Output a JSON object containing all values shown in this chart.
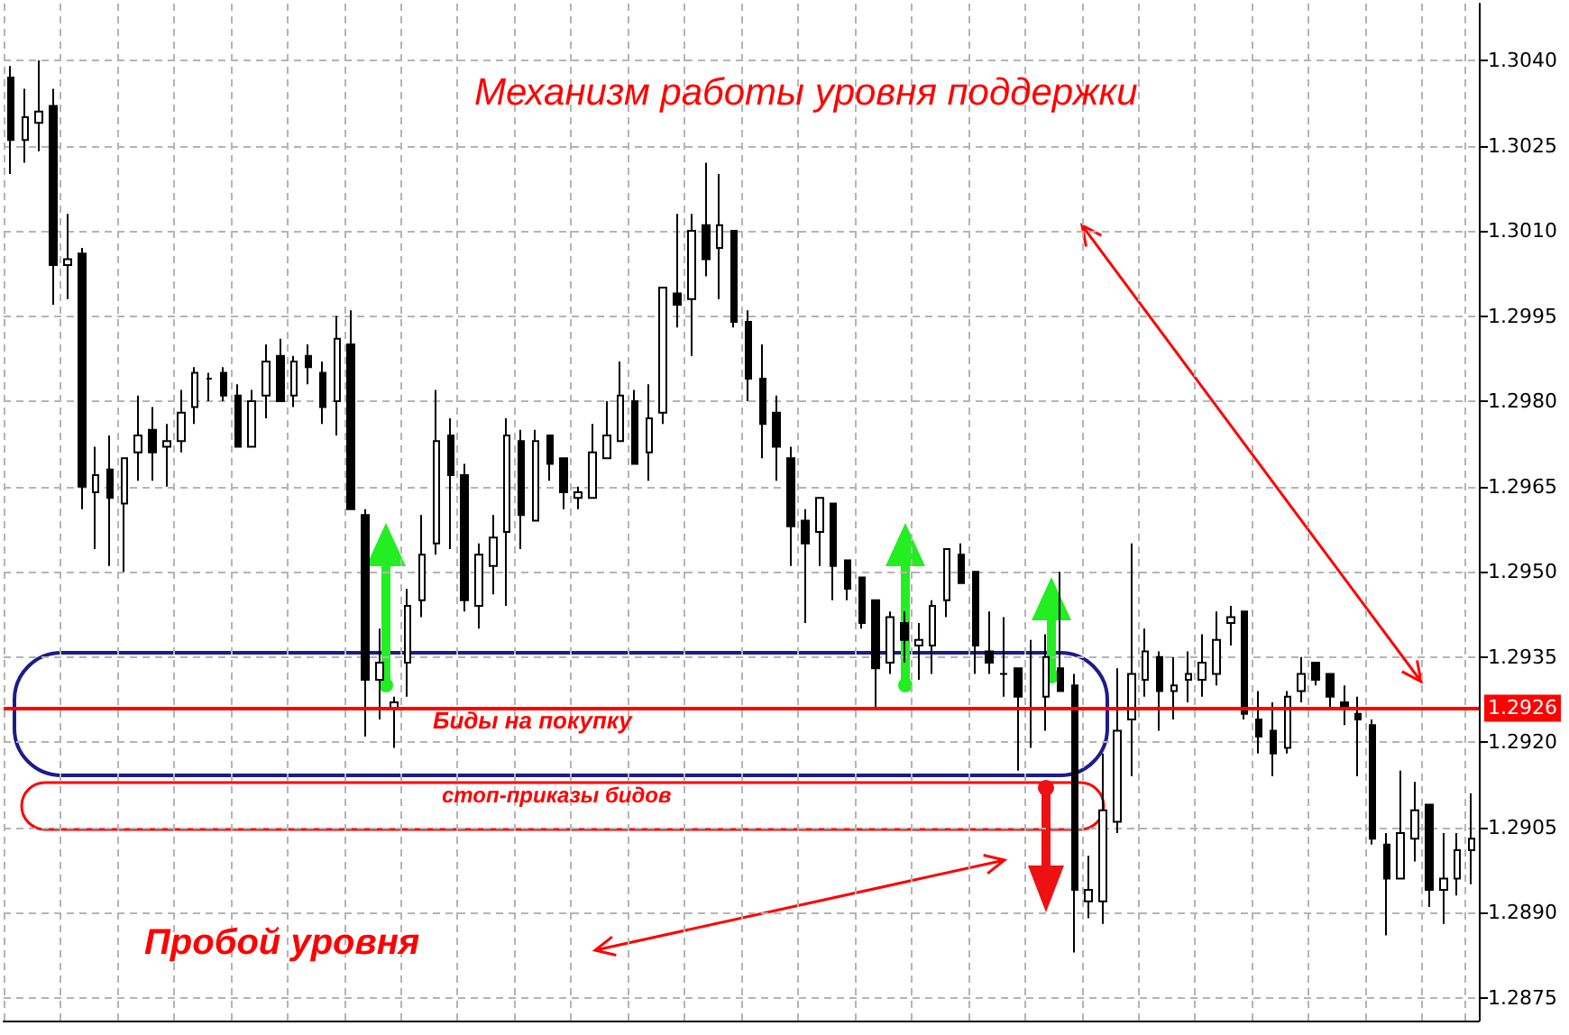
{
  "chart_data": {
    "type": "candlestick",
    "title": "Механизм работы уровня поддержки",
    "annotations": [
      "Биды на покупку",
      "стоп-приказы бидов",
      "Пробой уровня"
    ],
    "categories": [
      null,
      null,
      null,
      null,
      null,
      null,
      null,
      null,
      null,
      null,
      null,
      null,
      null,
      null,
      null,
      null,
      null,
      null,
      null,
      null,
      null,
      null,
      null,
      null,
      null,
      null,
      null,
      null,
      null,
      null,
      null,
      null,
      null,
      null,
      null,
      null,
      null,
      null,
      null,
      null,
      null,
      null,
      null,
      null,
      null,
      null,
      null,
      null,
      null,
      null,
      null,
      null,
      null,
      null,
      null,
      null,
      null,
      null,
      null,
      null,
      null,
      null,
      null,
      null,
      null,
      null,
      null,
      null,
      null,
      null,
      null,
      null,
      null,
      null,
      null,
      null,
      null,
      null,
      null,
      null,
      null,
      null,
      null,
      null,
      null,
      null,
      null,
      null,
      null,
      null,
      null,
      null,
      null,
      null,
      null,
      null,
      null,
      null,
      null,
      null,
      null,
      null,
      null,
      null
    ],
    "ohlc": [
      [
        1.3037,
        1.3039,
        1.302,
        1.3026
      ],
      [
        1.3026,
        1.3035,
        1.3022,
        1.303
      ],
      [
        1.3029,
        1.304,
        1.3024,
        1.3031
      ],
      [
        1.3032,
        1.3035,
        1.2997,
        1.3004
      ],
      [
        1.3004,
        1.3013,
        1.2998,
        1.3005
      ],
      [
        1.3006,
        1.3007,
        1.2961,
        1.2965
      ],
      [
        1.2964,
        1.2972,
        1.2954,
        1.2967
      ],
      [
        1.2968,
        1.2974,
        1.2951,
        1.2963
      ],
      [
        1.2962,
        1.297,
        1.295,
        1.297
      ],
      [
        1.2971,
        1.2981,
        1.2966,
        1.2974
      ],
      [
        1.2975,
        1.2979,
        1.2966,
        1.2971
      ],
      [
        1.2972,
        1.2976,
        1.2965,
        1.2973
      ],
      [
        1.2973,
        1.2982,
        1.2971,
        1.2978
      ],
      [
        1.2979,
        1.2986,
        1.2976,
        1.2985
      ],
      [
        1.2984,
        1.2985,
        1.298,
        1.2984
      ],
      [
        1.2985,
        1.2986,
        1.298,
        1.2981
      ],
      [
        1.2981,
        1.2983,
        1.2972,
        1.2972
      ],
      [
        1.2972,
        1.2982,
        1.2972,
        1.298
      ],
      [
        1.2981,
        1.299,
        1.2977,
        1.2987
      ],
      [
        1.2988,
        1.2991,
        1.298,
        1.298
      ],
      [
        1.2981,
        1.2988,
        1.2979,
        1.2987
      ],
      [
        1.2988,
        1.299,
        1.2983,
        1.2986
      ],
      [
        1.2985,
        1.2987,
        1.2976,
        1.2979
      ],
      [
        1.298,
        1.2995,
        1.2974,
        1.2991
      ],
      [
        1.299,
        1.2996,
        1.2961,
        1.2961
      ],
      [
        1.296,
        1.2961,
        1.2921,
        1.2931
      ],
      [
        1.2931,
        1.294,
        1.2924,
        1.2934
      ],
      [
        1.2926,
        1.2928,
        1.2919,
        1.2927
      ],
      [
        1.2934,
        1.2947,
        1.2928,
        1.2944
      ],
      [
        1.2945,
        1.296,
        1.2942,
        1.2953
      ],
      [
        1.2955,
        1.2982,
        1.2953,
        1.2973
      ],
      [
        1.2974,
        1.2977,
        1.2954,
        1.2967
      ],
      [
        1.2967,
        1.2969,
        1.2943,
        1.2945
      ],
      [
        1.2944,
        1.2955,
        1.294,
        1.2953
      ],
      [
        1.2951,
        1.296,
        1.2946,
        1.2956
      ],
      [
        1.2957,
        1.2977,
        1.2944,
        1.2974
      ],
      [
        1.2973,
        1.2975,
        1.2954,
        1.296
      ],
      [
        1.2959,
        1.2975,
        1.2959,
        1.2973
      ],
      [
        1.2974,
        1.2974,
        1.2966,
        1.2969
      ],
      [
        1.297,
        1.297,
        1.2961,
        1.2964
      ],
      [
        1.2963,
        1.2965,
        1.2961,
        1.2964
      ],
      [
        1.2963,
        1.2976,
        1.2963,
        1.2971
      ],
      [
        1.297,
        1.298,
        1.297,
        1.2974
      ],
      [
        1.2973,
        1.2987,
        1.2973,
        1.2981
      ],
      [
        1.298,
        1.2982,
        1.2969,
        1.2969
      ],
      [
        1.2971,
        1.2983,
        1.2966,
        1.2977
      ],
      [
        1.2978,
        1.3,
        1.2976,
        1.3
      ],
      [
        1.2999,
        1.3013,
        1.2993,
        1.2997
      ],
      [
        1.2998,
        1.3013,
        1.2988,
        1.301
      ],
      [
        1.3011,
        1.3022,
        1.3002,
        1.3005
      ],
      [
        1.3007,
        1.302,
        1.2998,
        1.3011
      ],
      [
        1.301,
        1.301,
        1.2993,
        1.2994
      ],
      [
        1.2994,
        1.2996,
        1.298,
        1.2984
      ],
      [
        1.2984,
        1.299,
        1.297,
        1.2976
      ],
      [
        1.2978,
        1.2981,
        1.2966,
        1.2972
      ],
      [
        1.297,
        1.2972,
        1.2951,
        1.2958
      ],
      [
        1.2959,
        1.2961,
        1.2941,
        1.2955
      ],
      [
        1.2957,
        1.2963,
        1.2951,
        1.2963
      ],
      [
        1.2962,
        1.2962,
        1.2945,
        1.2951
      ],
      [
        1.2952,
        1.2952,
        1.2945,
        1.2947
      ],
      [
        1.2949,
        1.2949,
        1.294,
        1.2941
      ],
      [
        1.2945,
        1.2945,
        1.2926,
        1.2933
      ],
      [
        1.2934,
        1.2943,
        1.2932,
        1.2942
      ],
      [
        1.2941,
        1.2943,
        1.2934,
        1.2938
      ],
      [
        1.2937,
        1.2941,
        1.2931,
        1.2938
      ],
      [
        1.2937,
        1.2945,
        1.2932,
        1.2944
      ],
      [
        1.2945,
        1.2954,
        1.2942,
        1.2954
      ],
      [
        1.2953,
        1.2955,
        1.2948,
        1.2948
      ],
      [
        1.295,
        1.295,
        1.2932,
        1.2937
      ],
      [
        1.2936,
        1.2943,
        1.2932,
        1.2934
      ],
      [
        1.2932,
        1.2942,
        1.2928,
        1.2932
      ],
      [
        1.2933,
        1.2933,
        1.2915,
        1.2928
      ],
      [
        1.2926,
        1.2938,
        1.2919,
        1.2926
      ],
      [
        1.2928,
        1.2939,
        1.2922,
        1.2935
      ],
      [
        1.2933,
        1.295,
        1.2929,
        1.2929
      ],
      [
        1.293,
        1.2932,
        1.2883,
        1.2894
      ],
      [
        1.2892,
        1.29,
        1.2889,
        1.2894
      ],
      [
        1.2892,
        1.2918,
        1.2888,
        1.2908
      ],
      [
        1.2906,
        1.2933,
        1.2904,
        1.2922
      ],
      [
        1.2924,
        1.2955,
        1.2914,
        1.2932
      ],
      [
        1.2931,
        1.294,
        1.2928,
        1.2936
      ],
      [
        1.2935,
        1.2936,
        1.2922,
        1.2929
      ],
      [
        1.2929,
        1.2935,
        1.2924,
        1.293
      ],
      [
        1.2931,
        1.2936,
        1.2927,
        1.2932
      ],
      [
        1.2931,
        1.2939,
        1.2928,
        1.2934
      ],
      [
        1.2932,
        1.2943,
        1.293,
        1.2938
      ],
      [
        1.2941,
        1.2944,
        1.2937,
        1.2942
      ],
      [
        1.2943,
        1.2943,
        1.2924,
        1.2925
      ],
      [
        1.2924,
        1.2929,
        1.2918,
        1.2921
      ],
      [
        1.2922,
        1.2927,
        1.2914,
        1.2918
      ],
      [
        1.2919,
        1.2929,
        1.2918,
        1.2928
      ],
      [
        1.2929,
        1.2935,
        1.2927,
        1.2932
      ],
      [
        1.2934,
        1.2934,
        1.293,
        1.2931
      ],
      [
        1.2932,
        1.2932,
        1.2926,
        1.2928
      ],
      [
        1.2927,
        1.293,
        1.2923,
        1.2926
      ],
      [
        1.2925,
        1.2928,
        1.2914,
        1.2924
      ],
      [
        1.2923,
        1.2924,
        1.2902,
        1.2903
      ],
      [
        1.2902,
        1.2904,
        1.2886,
        1.2896
      ],
      [
        1.2896,
        1.2915,
        1.2896,
        1.2904
      ],
      [
        1.2903,
        1.2913,
        1.2899,
        1.2908
      ],
      [
        1.2909,
        1.2909,
        1.2891,
        1.2894
      ],
      [
        1.2894,
        1.2904,
        1.2888,
        1.2896
      ],
      [
        1.2896,
        1.2904,
        1.2893,
        1.2901
      ],
      [
        1.2901,
        1.2911,
        1.2895,
        1.2903
      ]
    ],
    "ylim": [
      1.2871,
      1.305
    ],
    "yticks": [
      {
        "value": 1.2875,
        "label": "1.2875"
      },
      {
        "value": 1.289,
        "label": "1.2890"
      },
      {
        "value": 1.2905,
        "label": "1.2905"
      },
      {
        "value": 1.292,
        "label": "1.2920"
      },
      {
        "value": 1.2935,
        "label": "1.2935"
      },
      {
        "value": 1.295,
        "label": "1.2950"
      },
      {
        "value": 1.2965,
        "label": "1.2965"
      },
      {
        "value": 1.298,
        "label": "1.2980"
      },
      {
        "value": 1.2995,
        "label": "1.2995"
      },
      {
        "value": 1.301,
        "label": "1.3010"
      },
      {
        "value": 1.3025,
        "label": "1.3025"
      },
      {
        "value": 1.304,
        "label": "1.3040"
      }
    ],
    "ref_lines": [
      {
        "axis": "y",
        "value": 1.2926,
        "label": "1.2926",
        "color": "#ff0000"
      }
    ],
    "tick_labels": "y",
    "grid": true
  }
}
